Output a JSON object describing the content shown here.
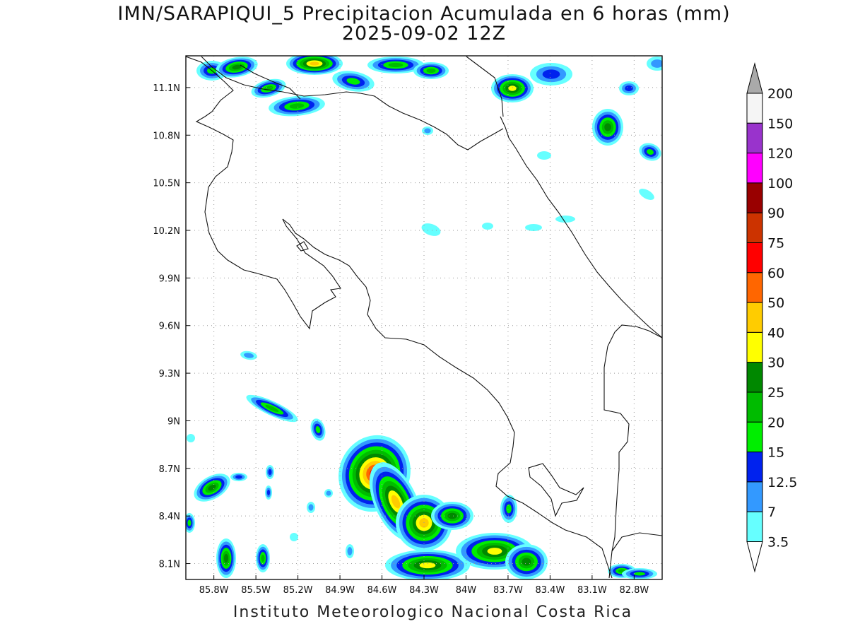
{
  "title": "IMN/SARAPIQUI_5 Precipitacion Acumulada en 6 horas (mm)",
  "subtitle": "2025-09-02 12Z",
  "footer": "Instituto Meteorologico Nacional Costa Rica",
  "map": {
    "lon_min": -86.0,
    "lon_max": -82.6,
    "lat_min": 8.0,
    "lat_max": 11.3,
    "lon_ticks": [
      "85.8W",
      "85.5W",
      "85.2W",
      "84.9W",
      "84.6W",
      "84.3W",
      "84W",
      "83.7W",
      "83.4W",
      "83.1W",
      "82.8W"
    ],
    "lat_ticks": [
      "11.1N",
      "10.8N",
      "10.5N",
      "10.2N",
      "9.9N",
      "9.6N",
      "9.3N",
      "9N",
      "8.7N",
      "8.4N",
      "8.1N"
    ],
    "grid": true
  },
  "colorbar": {
    "labels": [
      "3.5",
      "7",
      "12.5",
      "15",
      "20",
      "25",
      "30",
      "40",
      "50",
      "60",
      "75",
      "90",
      "100",
      "120",
      "150",
      "200"
    ],
    "colors": [
      "#66ffff",
      "#3399ff",
      "#0022ee",
      "#00ee00",
      "#00bb00",
      "#008800",
      "#ffff00",
      "#ffcc00",
      "#ff6600",
      "#ff0000",
      "#cc3300",
      "#990000",
      "#ff00ff",
      "#9933cc",
      "#f5f5f5",
      "#aaaaaa"
    ],
    "arrow_top_color": "#aaaaaa",
    "arrow_bottom_color": "#ffffff"
  }
}
